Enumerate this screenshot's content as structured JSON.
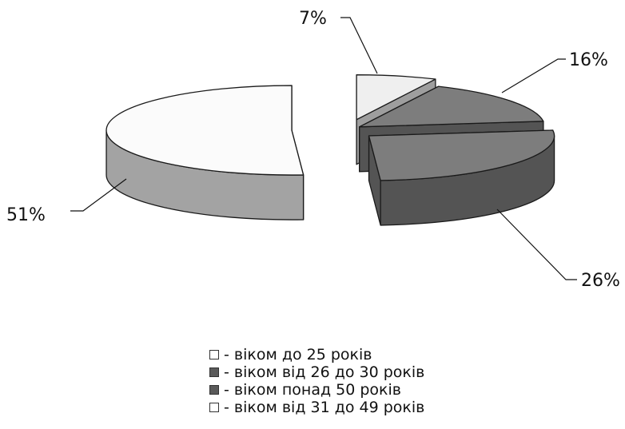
{
  "chart_data": {
    "type": "pie",
    "style": "3d-exploded",
    "slices": [
      {
        "label": "віком до 25 років",
        "value": 7,
        "display": "7%",
        "top_color": "#efefef",
        "side_color": "#9e9e9e"
      },
      {
        "label": "віком від 26 до 30 років",
        "value": 16,
        "display": "16%",
        "top_color": "#7d7d7d",
        "side_color": "#545454"
      },
      {
        "label": "віком понад 50 років",
        "value": 26,
        "display": "26%",
        "top_color": "#7d7d7d",
        "side_color": "#545454"
      },
      {
        "label": "віком від 31 до 49 років",
        "value": 51,
        "display": "51%",
        "top_color": "#fbfbfb",
        "side_color": "#a3a3a3"
      }
    ],
    "legend": {
      "position": "bottom",
      "items": [
        {
          "text": "- віком до 25 років",
          "swatch": "#ffffff"
        },
        {
          "text": "- віком від 26 до 30 років",
          "swatch": "#5a5a5a"
        },
        {
          "text": "- віком понад 50 років",
          "swatch": "#5a5a5a"
        },
        {
          "text": "- віком від 31 до 49 років",
          "swatch": "#ffffff"
        }
      ]
    }
  }
}
